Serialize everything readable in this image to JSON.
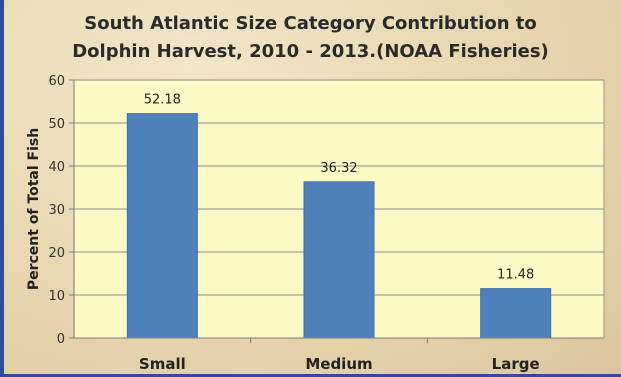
{
  "chart_data": {
    "type": "bar",
    "title_lines": [
      "South Atlantic  Size Category Contribution to",
      "Dolphin Harvest, 2010 - 2013.(NOAA Fisheries)"
    ],
    "categories": [
      "Small",
      "Medium",
      "Large"
    ],
    "values": [
      52.18,
      36.32,
      11.48
    ],
    "value_labels": [
      "52.18",
      "36.32",
      "11.48"
    ],
    "ylabel": "Percent of Total Fish",
    "xlabel": "",
    "ylim": [
      0,
      60
    ],
    "yticks": [
      0,
      10,
      20,
      30,
      40,
      50,
      60
    ],
    "grid": true,
    "legend": "none",
    "colors": {
      "bar": "#4f81bd",
      "plot_background": "#fdf9c4",
      "grid": "#8c8c8c",
      "frame": "#2f4d9a"
    }
  }
}
